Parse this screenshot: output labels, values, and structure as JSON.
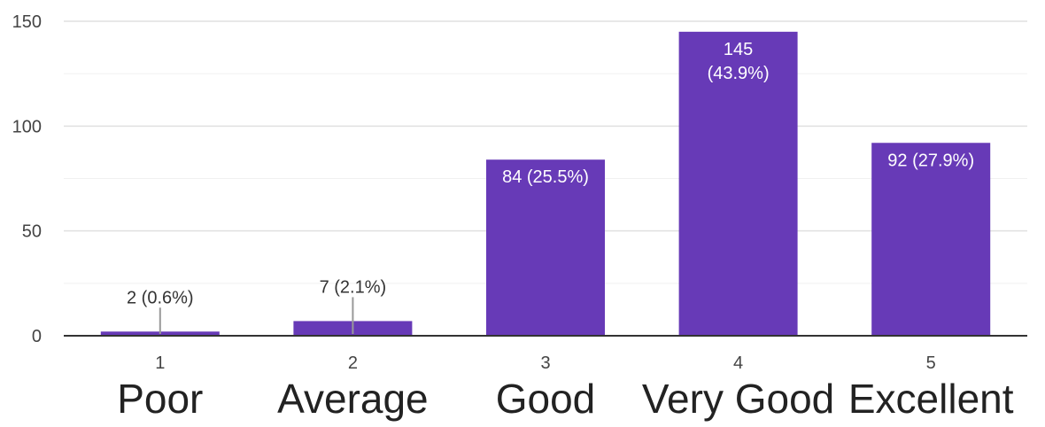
{
  "chart_data": {
    "type": "bar",
    "categories": [
      "1",
      "2",
      "3",
      "4",
      "5"
    ],
    "category_sublabels": [
      "Poor",
      "Average",
      "Good",
      "Very Good",
      "Excellent"
    ],
    "values": [
      2,
      7,
      84,
      145,
      92
    ],
    "data_labels": [
      "2 (0.6%)",
      "7 (2.1%)",
      "84 (25.5%)",
      "145 (43.9%)",
      "92 (27.9%)"
    ],
    "yticks": [
      "0",
      "50",
      "100",
      "150"
    ],
    "ylim": [
      0,
      150
    ],
    "title": "",
    "xlabel": "",
    "ylabel": "",
    "grid": true,
    "legend": "none",
    "colors": {
      "bar": "#673ab7",
      "grid": "#e0e0e0",
      "axis": "#333333",
      "label_text": "#333333",
      "tick_text": "#444444",
      "leader": "#999999",
      "inside_label": "#ffffff"
    }
  }
}
